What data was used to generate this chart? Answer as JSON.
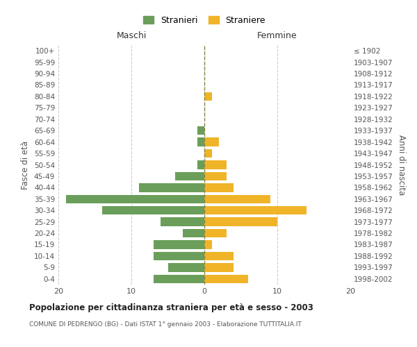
{
  "age_groups": [
    "0-4",
    "5-9",
    "10-14",
    "15-19",
    "20-24",
    "25-29",
    "30-34",
    "35-39",
    "40-44",
    "45-49",
    "50-54",
    "55-59",
    "60-64",
    "65-69",
    "70-74",
    "75-79",
    "80-84",
    "85-89",
    "90-94",
    "95-99",
    "100+"
  ],
  "birth_years": [
    "1998-2002",
    "1993-1997",
    "1988-1992",
    "1983-1987",
    "1978-1982",
    "1973-1977",
    "1968-1972",
    "1963-1967",
    "1958-1962",
    "1953-1957",
    "1948-1952",
    "1943-1947",
    "1938-1942",
    "1933-1937",
    "1928-1932",
    "1923-1927",
    "1918-1922",
    "1913-1917",
    "1908-1912",
    "1903-1907",
    "≤ 1902"
  ],
  "males": [
    7,
    5,
    7,
    7,
    3,
    6,
    14,
    19,
    9,
    4,
    1,
    0,
    1,
    1,
    0,
    0,
    0,
    0,
    0,
    0,
    0
  ],
  "females": [
    6,
    4,
    4,
    1,
    3,
    10,
    14,
    9,
    4,
    3,
    3,
    1,
    2,
    0,
    0,
    0,
    1,
    0,
    0,
    0,
    0
  ],
  "male_color": "#6a9e5a",
  "female_color": "#f0b429",
  "title": "Popolazione per cittadinanza straniera per età e sesso - 2003",
  "subtitle": "COMUNE DI PEDRENGO (BG) - Dati ISTAT 1° gennaio 2003 - Elaborazione TUTTITALIA.IT",
  "xlabel_left": "Maschi",
  "xlabel_right": "Femmine",
  "ylabel_left": "Fasce di età",
  "ylabel_right": "Anni di nascita",
  "legend_males": "Stranieri",
  "legend_females": "Straniere",
  "xlim": 20,
  "background_color": "#ffffff",
  "grid_color": "#cccccc"
}
